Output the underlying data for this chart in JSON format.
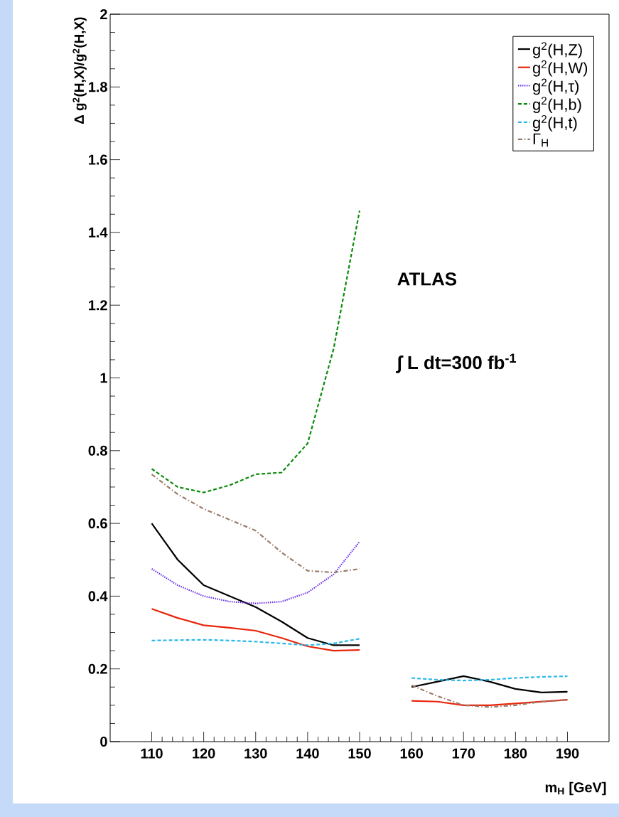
{
  "chart_data": {
    "type": "line",
    "xlabel": "m$_{H}$ [GeV]",
    "ylabel": "Δ g$^{2}$(H,X)/g$^{2}$(H,X)",
    "annotations": [
      "ATLAS",
      "∫ L dt=300 fb$^{-1}$"
    ],
    "x": [
      110,
      115,
      120,
      125,
      130,
      135,
      140,
      145,
      150,
      155,
      160,
      165,
      170,
      175,
      180,
      185,
      190
    ],
    "series": [
      {
        "name": "g$^{2}$(H,Z)",
        "color": "#000000",
        "line_style": "solid",
        "values": [
          0.6,
          0.5,
          0.43,
          0.4,
          0.37,
          0.33,
          0.285,
          0.265,
          0.265,
          null,
          0.15,
          0.165,
          0.18,
          0.165,
          0.145,
          0.135,
          0.137
        ]
      },
      {
        "name": "g$^{2}$(H,W)",
        "color": "#e8250a",
        "line_style": "solid",
        "values": [
          0.365,
          0.34,
          0.32,
          0.313,
          0.305,
          0.285,
          0.262,
          0.25,
          0.252,
          null,
          0.112,
          0.11,
          0.1,
          0.1,
          0.105,
          0.11,
          0.115
        ]
      },
      {
        "name": "g$^{2}$(H,τ)",
        "color": "#6a2ee8",
        "line_style": "dotted",
        "values": [
          0.475,
          0.43,
          0.4,
          0.385,
          0.38,
          0.385,
          0.41,
          0.46,
          0.55,
          null,
          null,
          null,
          null,
          null,
          null,
          null,
          null
        ]
      },
      {
        "name": "g$^{2}$(H,b)",
        "color": "#0a8a0a",
        "line_style": "dashed",
        "values": [
          0.75,
          0.7,
          0.685,
          0.705,
          0.735,
          0.74,
          0.82,
          1.08,
          1.46,
          null,
          null,
          null,
          null,
          null,
          null,
          null,
          null
        ]
      },
      {
        "name": "g$^{2}$(H,t)",
        "color": "#2ab8e8",
        "line_style": "dashed",
        "values": [
          0.278,
          0.279,
          0.28,
          0.278,
          0.275,
          0.27,
          0.265,
          0.27,
          0.283,
          null,
          0.175,
          0.17,
          0.168,
          0.17,
          0.175,
          0.178,
          0.18
        ]
      },
      {
        "name": "Γ$_{H}$",
        "color": "#9b7b6b",
        "line_style": "dashdotted",
        "values": [
          0.735,
          0.68,
          0.64,
          0.61,
          0.58,
          0.52,
          0.47,
          0.465,
          0.475,
          null,
          0.155,
          0.125,
          0.1,
          0.095,
          0.1,
          0.11,
          0.115
        ]
      }
    ],
    "xlim": [
      102,
      198
    ],
    "xticks": [
      110,
      120,
      130,
      140,
      150,
      160,
      170,
      180,
      190
    ],
    "ylim": [
      0,
      2
    ],
    "yticks": [
      0,
      0.2,
      0.4,
      0.6,
      0.8,
      1,
      1.2,
      1.4,
      1.6,
      1.8,
      2
    ],
    "legend": "top right"
  }
}
